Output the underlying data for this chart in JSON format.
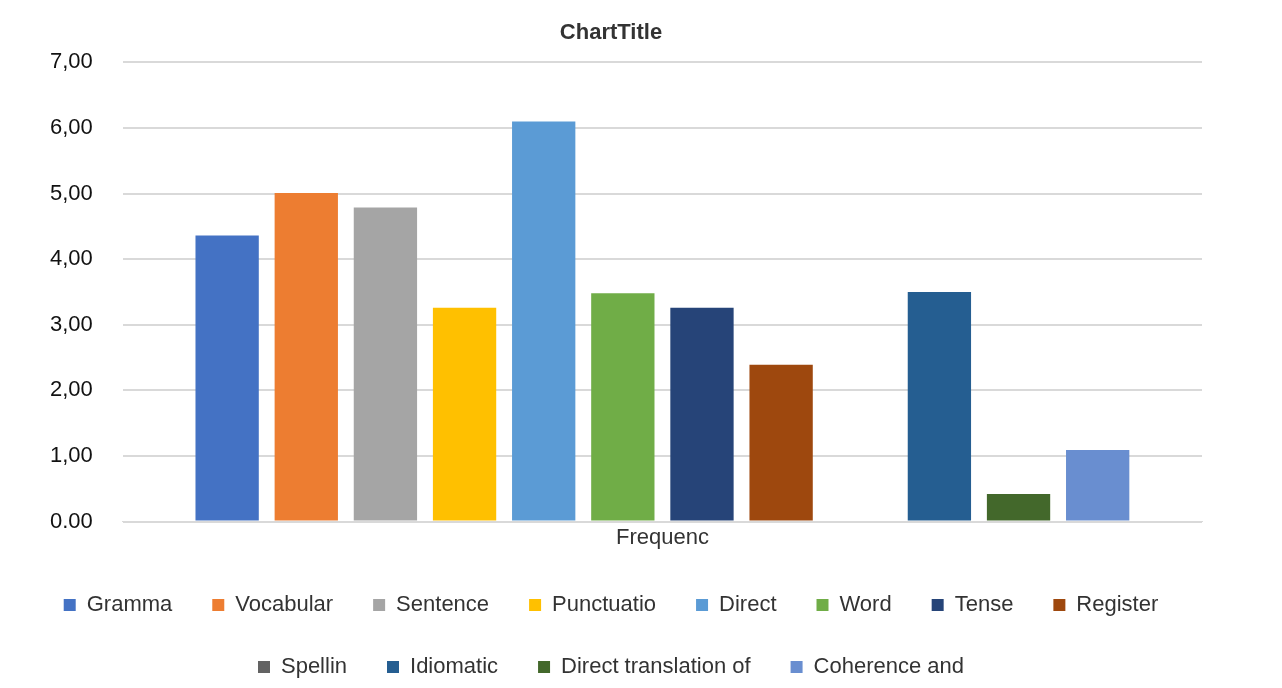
{
  "chart_data": {
    "type": "bar",
    "title": "ChartTitle",
    "categories": [
      "Frequenc"
    ],
    "series": [
      {
        "name": "Gramma",
        "color": "#4472c4",
        "values": [
          4.36
        ]
      },
      {
        "name": "Vocabular",
        "color": "#ed7d31",
        "values": [
          5.01
        ]
      },
      {
        "name": "Sentence",
        "color": "#a5a5a5",
        "values": [
          4.79
        ]
      },
      {
        "name": "Punctuatio",
        "color": "#ffc000",
        "values": [
          3.26
        ]
      },
      {
        "name": "Direct",
        "color": "#5b9bd5",
        "values": [
          6.1
        ]
      },
      {
        "name": "Word",
        "color": "#70ad47",
        "values": [
          3.48
        ]
      },
      {
        "name": "Tense",
        "color": "#264478",
        "values": [
          3.26
        ]
      },
      {
        "name": "Register",
        "color": "#9e480e",
        "values": [
          2.39
        ]
      },
      {
        "name": "Spellin",
        "color": "#636363",
        "values": [
          0
        ]
      },
      {
        "name": "Idiomatic",
        "color": "#255e91",
        "values": [
          3.5
        ]
      },
      {
        "name": "Direct translation of",
        "color": "#43682b",
        "values": [
          0.42
        ]
      },
      {
        "name": "Coherence and",
        "color": "#698ed0",
        "values": [
          1.09
        ]
      }
    ],
    "ylim": [
      0,
      7
    ],
    "yticks": [
      {
        "value": 0,
        "label": "0.00"
      },
      {
        "value": 1,
        "label": "1,00"
      },
      {
        "value": 2,
        "label": "2,00"
      },
      {
        "value": 3,
        "label": "3,00"
      },
      {
        "value": 4,
        "label": "4,00"
      },
      {
        "value": 5,
        "label": "5,00"
      },
      {
        "value": 6,
        "label": "6,00"
      },
      {
        "value": 7,
        "label": "7,00"
      }
    ],
    "grid": "y",
    "legend": "bottom"
  }
}
